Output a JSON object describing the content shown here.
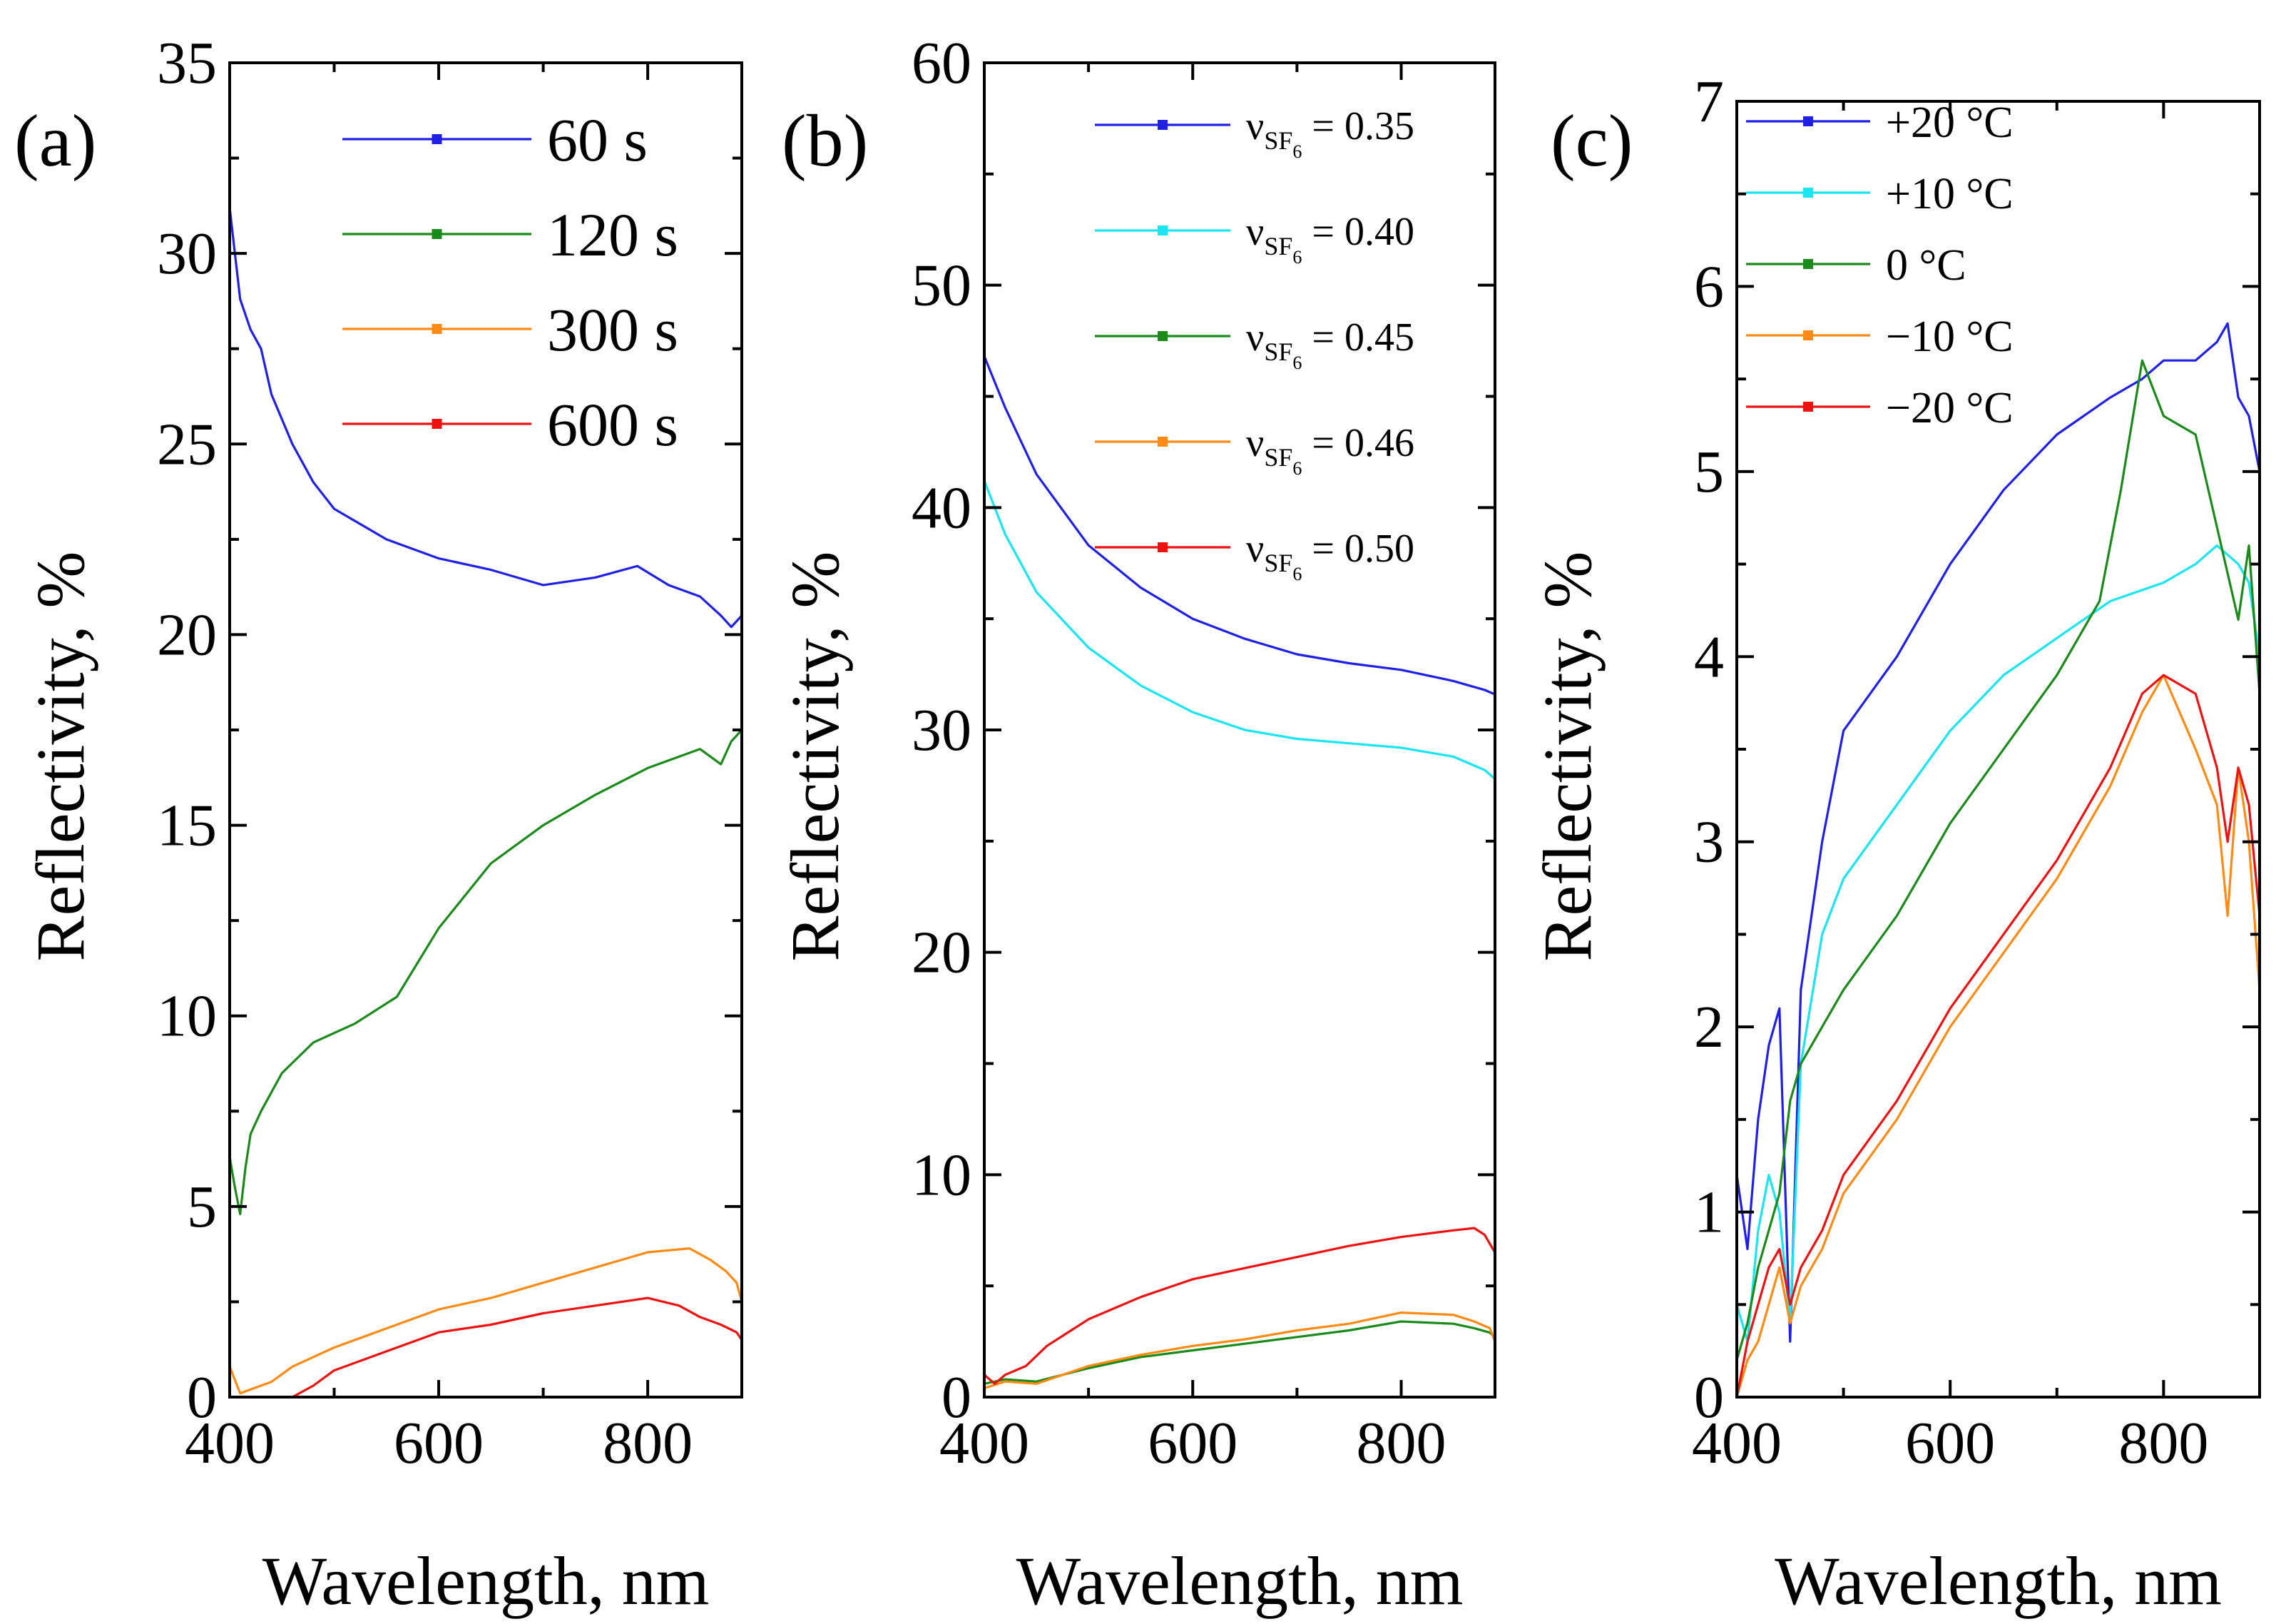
{
  "figure": {
    "panels": [
      {
        "label": "(a)"
      },
      {
        "label": "(b)"
      },
      {
        "label": "(c)"
      }
    ]
  },
  "chart_data": [
    {
      "type": "line",
      "panel_label": "(a)",
      "xlabel": "Wavelength, nm",
      "ylabel": "Reflectivity, %",
      "xlim": [
        400,
        890
      ],
      "ylim": [
        0,
        35
      ],
      "xticks": [
        400,
        600,
        800
      ],
      "yticks": [
        0,
        5,
        10,
        15,
        20,
        25,
        30,
        35
      ],
      "legend_position": "top-right",
      "series": [
        {
          "name": "60 s",
          "color": "#1f1fe6",
          "x": [
            400,
            410,
            420,
            430,
            440,
            460,
            480,
            500,
            550,
            600,
            650,
            700,
            750,
            790,
            820,
            850,
            870,
            880,
            890
          ],
          "values": [
            31.2,
            28.8,
            28.0,
            27.5,
            26.3,
            25.0,
            24.0,
            23.3,
            22.5,
            22.0,
            21.7,
            21.3,
            21.5,
            21.8,
            21.3,
            21.0,
            20.5,
            20.2,
            20.5
          ]
        },
        {
          "name": "120 s",
          "color": "#1a8a1a",
          "x": [
            400,
            405,
            410,
            415,
            420,
            430,
            450,
            480,
            520,
            560,
            600,
            650,
            700,
            750,
            800,
            850,
            870,
            880,
            890
          ],
          "values": [
            6.3,
            5.5,
            4.8,
            6.0,
            6.9,
            7.5,
            8.5,
            9.3,
            9.8,
            10.5,
            12.3,
            14.0,
            15.0,
            15.8,
            16.5,
            17.0,
            16.6,
            17.2,
            17.5
          ]
        },
        {
          "name": "300 s",
          "color": "#ff8a14",
          "x": [
            400,
            410,
            420,
            440,
            460,
            500,
            550,
            600,
            650,
            700,
            750,
            800,
            840,
            860,
            875,
            885,
            890
          ],
          "values": [
            0.8,
            0.1,
            0.2,
            0.4,
            0.8,
            1.3,
            1.8,
            2.3,
            2.6,
            3.0,
            3.4,
            3.8,
            3.9,
            3.6,
            3.3,
            3.0,
            2.5
          ]
        },
        {
          "name": "600 s",
          "color": "#ee1111",
          "x": [
            460,
            480,
            500,
            550,
            600,
            650,
            700,
            750,
            800,
            830,
            850,
            870,
            885,
            890
          ],
          "values": [
            0.0,
            0.3,
            0.7,
            1.2,
            1.7,
            1.9,
            2.2,
            2.4,
            2.6,
            2.4,
            2.1,
            1.9,
            1.7,
            1.5
          ]
        }
      ]
    },
    {
      "type": "line",
      "panel_label": "(b)",
      "xlabel": "Wavelength, nm",
      "ylabel": "Reflectivity, %",
      "xlim": [
        400,
        890
      ],
      "ylim": [
        0,
        60
      ],
      "xticks": [
        400,
        600,
        800
      ],
      "yticks": [
        0,
        10,
        20,
        30,
        40,
        50,
        60
      ],
      "legend_position": "top-right",
      "legend_symbol": "ν",
      "legend_subscript": "SF",
      "legend_subsubscript": "6",
      "series": [
        {
          "name": "0.35",
          "legend_value": "= 0.35",
          "color": "#1f1fe6",
          "x": [
            400,
            420,
            450,
            500,
            550,
            600,
            650,
            700,
            750,
            800,
            850,
            880,
            890
          ],
          "values": [
            46.8,
            44.5,
            41.5,
            38.3,
            36.4,
            35.0,
            34.1,
            33.4,
            33.0,
            32.7,
            32.2,
            31.8,
            31.6
          ]
        },
        {
          "name": "0.40",
          "legend_value": "= 0.40",
          "color": "#19e6f0",
          "x": [
            400,
            420,
            450,
            500,
            550,
            600,
            650,
            700,
            750,
            800,
            850,
            880,
            890
          ],
          "values": [
            41.2,
            38.8,
            36.2,
            33.7,
            32.0,
            30.8,
            30.0,
            29.6,
            29.4,
            29.2,
            28.8,
            28.2,
            27.8
          ]
        },
        {
          "name": "0.45",
          "legend_value": "= 0.45",
          "color": "#1a8a1a",
          "x": [
            400,
            420,
            450,
            500,
            550,
            600,
            650,
            700,
            750,
            800,
            850,
            870,
            885,
            890
          ],
          "values": [
            0.6,
            0.8,
            0.7,
            1.3,
            1.8,
            2.1,
            2.4,
            2.7,
            3.0,
            3.4,
            3.3,
            3.1,
            2.9,
            2.7
          ]
        },
        {
          "name": "0.46",
          "legend_value": "= 0.46",
          "color": "#ff8a14",
          "x": [
            400,
            420,
            450,
            500,
            550,
            600,
            650,
            700,
            750,
            800,
            850,
            870,
            885,
            890
          ],
          "values": [
            0.4,
            0.7,
            0.6,
            1.4,
            1.9,
            2.3,
            2.6,
            3.0,
            3.3,
            3.8,
            3.7,
            3.4,
            3.1,
            2.5
          ]
        },
        {
          "name": "0.50",
          "legend_value": "= 0.50",
          "color": "#ee1111",
          "x": [
            400,
            410,
            420,
            440,
            460,
            480,
            500,
            550,
            600,
            650,
            700,
            750,
            800,
            850,
            870,
            880,
            890
          ],
          "values": [
            1.0,
            0.6,
            1.0,
            1.4,
            2.3,
            2.9,
            3.5,
            4.5,
            5.3,
            5.8,
            6.3,
            6.8,
            7.2,
            7.5,
            7.6,
            7.3,
            6.5
          ]
        }
      ]
    },
    {
      "type": "line",
      "panel_label": "(c)",
      "xlabel": "Wavelength, nm",
      "ylabel": "Reflectivity, %",
      "xlim": [
        400,
        890
      ],
      "ylim": [
        0,
        7
      ],
      "xticks": [
        400,
        600,
        800
      ],
      "yticks": [
        0,
        1,
        2,
        3,
        4,
        5,
        6,
        7
      ],
      "legend_position": "top-left",
      "series": [
        {
          "name": "+20 °C",
          "color": "#1f1fe6",
          "x": [
            400,
            410,
            420,
            430,
            440,
            445,
            450,
            460,
            480,
            500,
            550,
            600,
            650,
            700,
            750,
            780,
            800,
            830,
            850,
            860,
            870,
            880,
            890
          ],
          "values": [
            1.2,
            0.8,
            1.5,
            1.9,
            2.1,
            1.2,
            0.3,
            2.2,
            3.0,
            3.6,
            4.0,
            4.5,
            4.9,
            5.2,
            5.4,
            5.5,
            5.6,
            5.6,
            5.7,
            5.8,
            5.4,
            5.3,
            5.0
          ]
        },
        {
          "name": "+10 °C",
          "color": "#19e6f0",
          "x": [
            400,
            410,
            420,
            430,
            440,
            450,
            460,
            480,
            500,
            550,
            600,
            650,
            700,
            750,
            800,
            830,
            850,
            870,
            880,
            890
          ],
          "values": [
            0.5,
            0.3,
            0.9,
            1.2,
            1.0,
            0.4,
            1.8,
            2.5,
            2.8,
            3.2,
            3.6,
            3.9,
            4.1,
            4.3,
            4.4,
            4.5,
            4.6,
            4.5,
            4.4,
            4.0
          ]
        },
        {
          "name": "0 °C",
          "color": "#1a8a1a",
          "x": [
            400,
            410,
            420,
            430,
            440,
            450,
            460,
            480,
            500,
            550,
            600,
            650,
            700,
            740,
            760,
            780,
            800,
            830,
            850,
            870,
            880,
            890
          ],
          "values": [
            0.2,
            0.4,
            0.7,
            0.9,
            1.1,
            1.6,
            1.8,
            2.0,
            2.2,
            2.6,
            3.1,
            3.5,
            3.9,
            4.3,
            4.9,
            5.6,
            5.3,
            5.2,
            4.7,
            4.2,
            4.6,
            3.8
          ]
        },
        {
          "name": "−10 °C",
          "color": "#ff8a14",
          "x": [
            400,
            410,
            420,
            430,
            440,
            450,
            460,
            480,
            500,
            550,
            600,
            650,
            700,
            750,
            780,
            800,
            830,
            850,
            860,
            870,
            880,
            890
          ],
          "values": [
            0.0,
            0.2,
            0.3,
            0.5,
            0.7,
            0.4,
            0.6,
            0.8,
            1.1,
            1.5,
            2.0,
            2.4,
            2.8,
            3.3,
            3.7,
            3.9,
            3.5,
            3.2,
            2.6,
            3.4,
            3.0,
            2.2
          ]
        },
        {
          "name": "−20 °C",
          "color": "#ee1111",
          "x": [
            400,
            410,
            420,
            430,
            440,
            450,
            460,
            480,
            500,
            550,
            600,
            650,
            700,
            750,
            780,
            800,
            830,
            850,
            860,
            870,
            880,
            890
          ],
          "values": [
            0.0,
            0.3,
            0.5,
            0.7,
            0.8,
            0.5,
            0.7,
            0.9,
            1.2,
            1.6,
            2.1,
            2.5,
            2.9,
            3.4,
            3.8,
            3.9,
            3.8,
            3.4,
            3.0,
            3.4,
            3.2,
            2.6
          ]
        }
      ]
    }
  ]
}
